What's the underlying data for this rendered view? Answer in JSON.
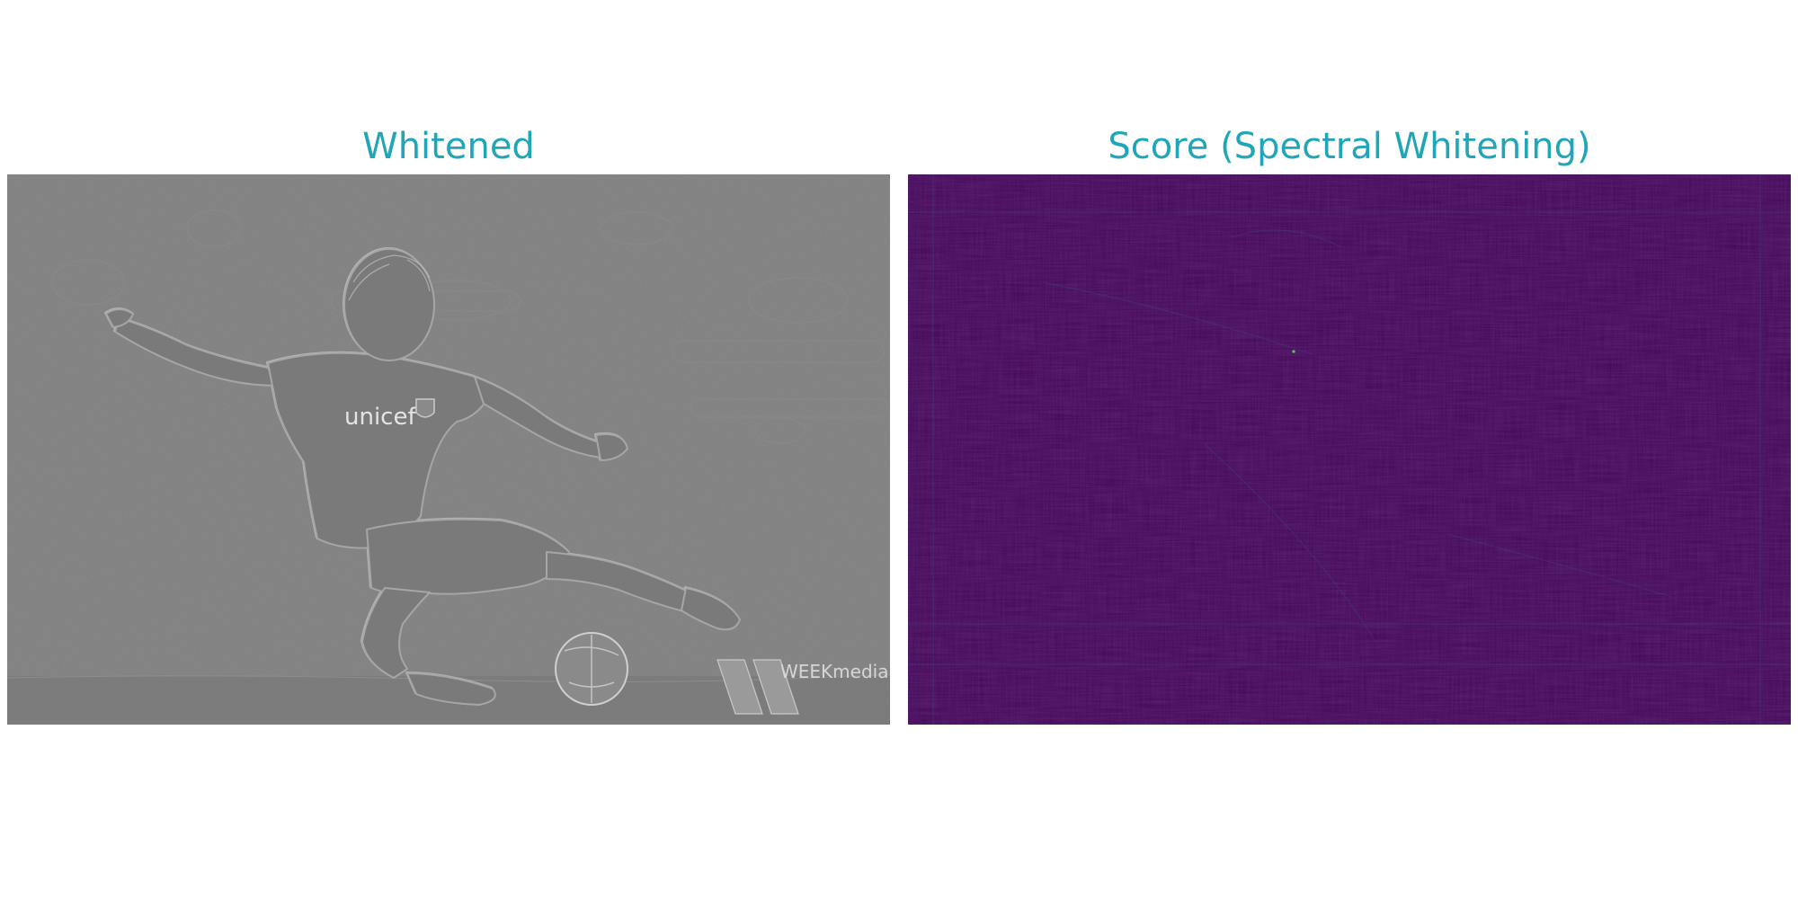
{
  "panels": [
    {
      "title": "Whitened",
      "image": {
        "kind": "grayscale-whitened-photo",
        "subject": "soccer-player-kicking-ball",
        "shirt_text": "unicef",
        "watermark_text": "WEEKmedia",
        "base_color": "#7e7e7e"
      }
    },
    {
      "title": "Score (Spectral Whitening)",
      "image": {
        "kind": "score-heatmap",
        "colormap": "viridis",
        "base_color": "#440154",
        "highlight_color": "#3b528b"
      }
    }
  ],
  "colors": {
    "title": "#21a5b8",
    "background": "#ffffff"
  }
}
